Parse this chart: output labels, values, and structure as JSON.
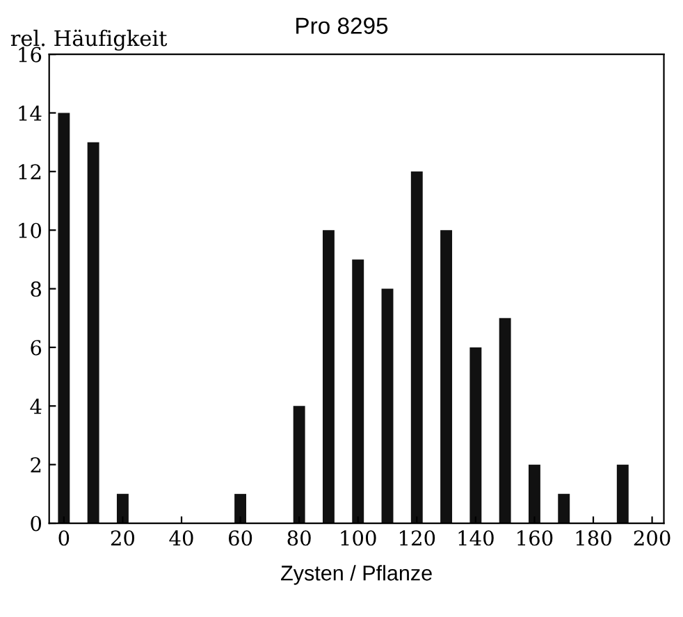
{
  "chart_data": {
    "type": "bar",
    "title": "Pro 8295",
    "ylabel": "rel. Häufigkeit",
    "xlabel": "Zysten / Pflanze",
    "x": [
      0,
      10,
      20,
      60,
      80,
      90,
      100,
      110,
      120,
      130,
      140,
      150,
      160,
      170,
      190
    ],
    "values": [
      14,
      13,
      1,
      1,
      4,
      10,
      9,
      8,
      12,
      10,
      6,
      7,
      2,
      1,
      2
    ],
    "color": "#111111",
    "xlim": [
      -5,
      204
    ],
    "xticks": [
      0,
      20,
      40,
      60,
      80,
      100,
      120,
      140,
      160,
      180,
      200
    ],
    "ylim": [
      0,
      16
    ],
    "yticks": [
      0,
      2,
      4,
      6,
      8,
      10,
      12,
      14,
      16
    ],
    "grid": false,
    "legend": false
  }
}
